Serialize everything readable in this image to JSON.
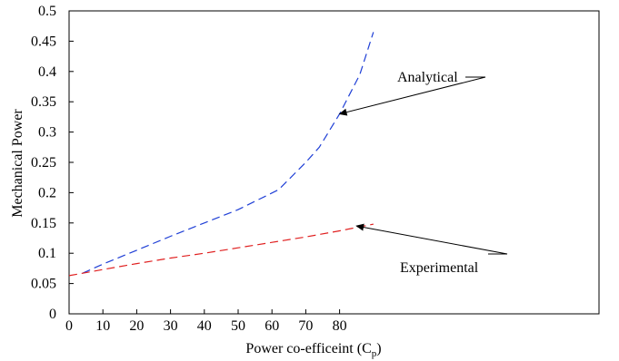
{
  "chart_data": {
    "type": "line",
    "title": "",
    "xlabel": "Power co-efficeint (C",
    "xlabel_sub": "p",
    "xlabel_close": ")",
    "ylabel": "Mechanical Power",
    "xlim": [
      0,
      100
    ],
    "ylim": [
      0,
      0.5
    ],
    "xticks": [
      "0",
      "10",
      "20",
      "30",
      "40",
      "50",
      "60",
      "70",
      "80"
    ],
    "yticks": [
      "0",
      "0.05",
      "0.1",
      "0.15",
      "0.2",
      "0.25",
      "0.3",
      "0.35",
      "0.4",
      "0.45",
      "0.5"
    ],
    "grid": false,
    "legend": "none",
    "series": [
      {
        "name": "Analytical",
        "color": "#1f3fd6",
        "dash": "dashed",
        "x": [
          4,
          10,
          20,
          30,
          40,
          50,
          62,
          70,
          74,
          80,
          86,
          90
        ],
        "y": [
          0.067,
          0.082,
          0.105,
          0.128,
          0.15,
          0.172,
          0.205,
          0.25,
          0.275,
          0.33,
          0.395,
          0.465
        ]
      },
      {
        "name": "Experimental",
        "color": "#e02020",
        "dash": "dashed",
        "x": [
          0,
          10,
          20,
          30,
          40,
          50,
          60,
          70,
          80,
          90
        ],
        "y": [
          0.063,
          0.073,
          0.083,
          0.092,
          0.1,
          0.109,
          0.118,
          0.127,
          0.137,
          0.148
        ]
      }
    ],
    "annotations": [
      {
        "text": "Analytical",
        "points_to_x": 80,
        "points_to_y": 0.33
      },
      {
        "text": "Experimental",
        "points_to_x": 85,
        "points_to_y": 0.145
      }
    ]
  }
}
